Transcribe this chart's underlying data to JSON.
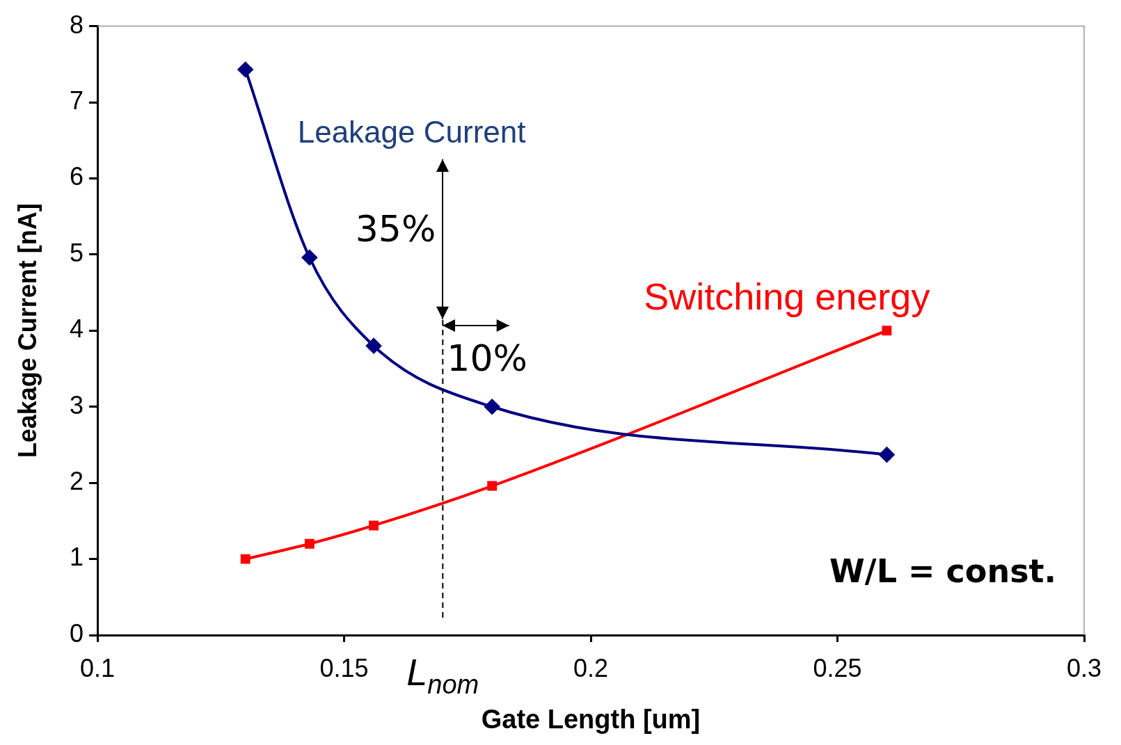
{
  "chart_data": {
    "type": "line",
    "xlabel": "Gate Length [um]",
    "ylabel": "Leakage Current [nA]",
    "xlim": [
      0.1,
      0.3
    ],
    "xticks": [
      0.1,
      0.15,
      0.2,
      0.25,
      0.3
    ],
    "ylim": [
      0,
      8
    ],
    "yticks": [
      0,
      1,
      2,
      3,
      4,
      5,
      6,
      7,
      8
    ],
    "grid": false,
    "legend": false,
    "x": [
      0.13,
      0.143,
      0.156,
      0.18,
      0.26
    ],
    "series": [
      {
        "name": "Leakage Current",
        "color": "#000080",
        "marker": "diamond",
        "values": [
          7.43,
          4.96,
          3.8,
          3.0,
          2.37
        ]
      },
      {
        "name": "Switching energy",
        "color": "#ff0000",
        "marker": "square",
        "values": [
          1.0,
          1.2,
          1.44,
          1.96,
          4.0
        ]
      }
    ],
    "ref_lines": [
      {
        "axis": "x",
        "value": 0.17,
        "label": "L$_{nom}$",
        "color": "#000000",
        "line_style": "dashed"
      }
    ],
    "annotations": [
      "35%",
      "10%",
      "W/L = const."
    ]
  }
}
